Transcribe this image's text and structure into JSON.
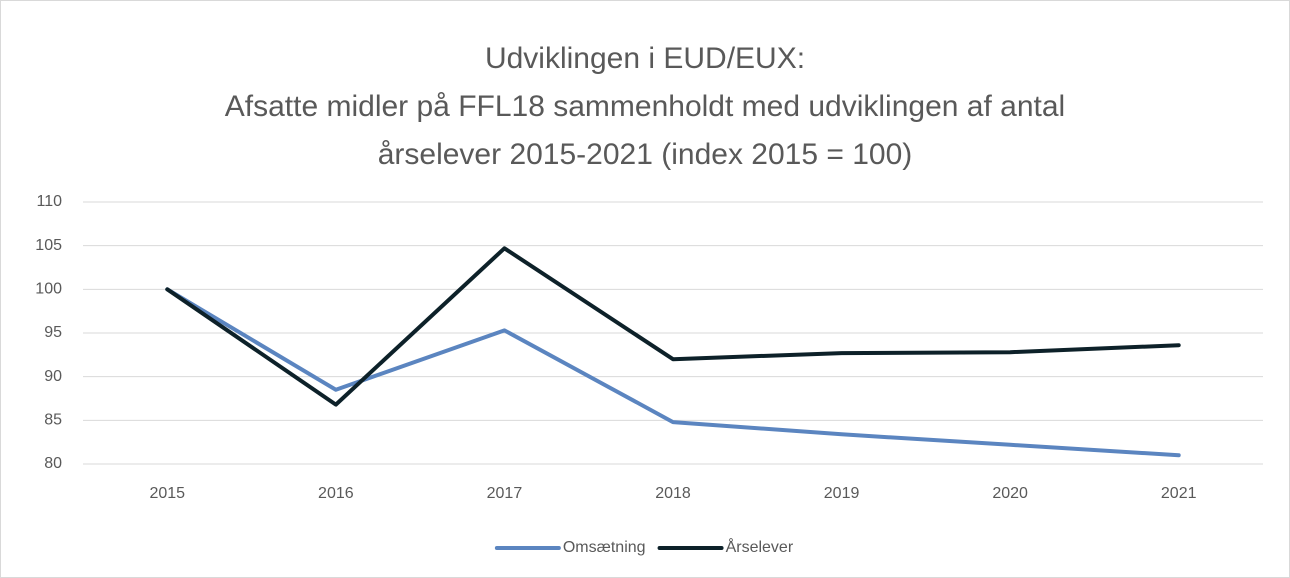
{
  "chart_data": {
    "type": "line",
    "title": [
      "Udviklingen i EUD/EUX:",
      "Afsatte midler på FFL18 sammenholdt med udviklingen af antal",
      "årselever 2015-2021 (index 2015 = 100)"
    ],
    "categories": [
      "2015",
      "2016",
      "2017",
      "2018",
      "2019",
      "2020",
      "2021"
    ],
    "series": [
      {
        "name": "Omsætning",
        "color": "#5b85c0",
        "values": [
          100,
          88.5,
          95.3,
          84.8,
          83.4,
          82.2,
          81.0
        ]
      },
      {
        "name": "Årselever",
        "color": "#0d2129",
        "values": [
          100,
          86.8,
          104.7,
          92.0,
          92.7,
          92.8,
          93.6
        ]
      }
    ],
    "ylim": [
      80,
      110
    ],
    "yticks": [
      80,
      85,
      90,
      95,
      100,
      105,
      110
    ],
    "grid": true,
    "legend": "bottom"
  }
}
